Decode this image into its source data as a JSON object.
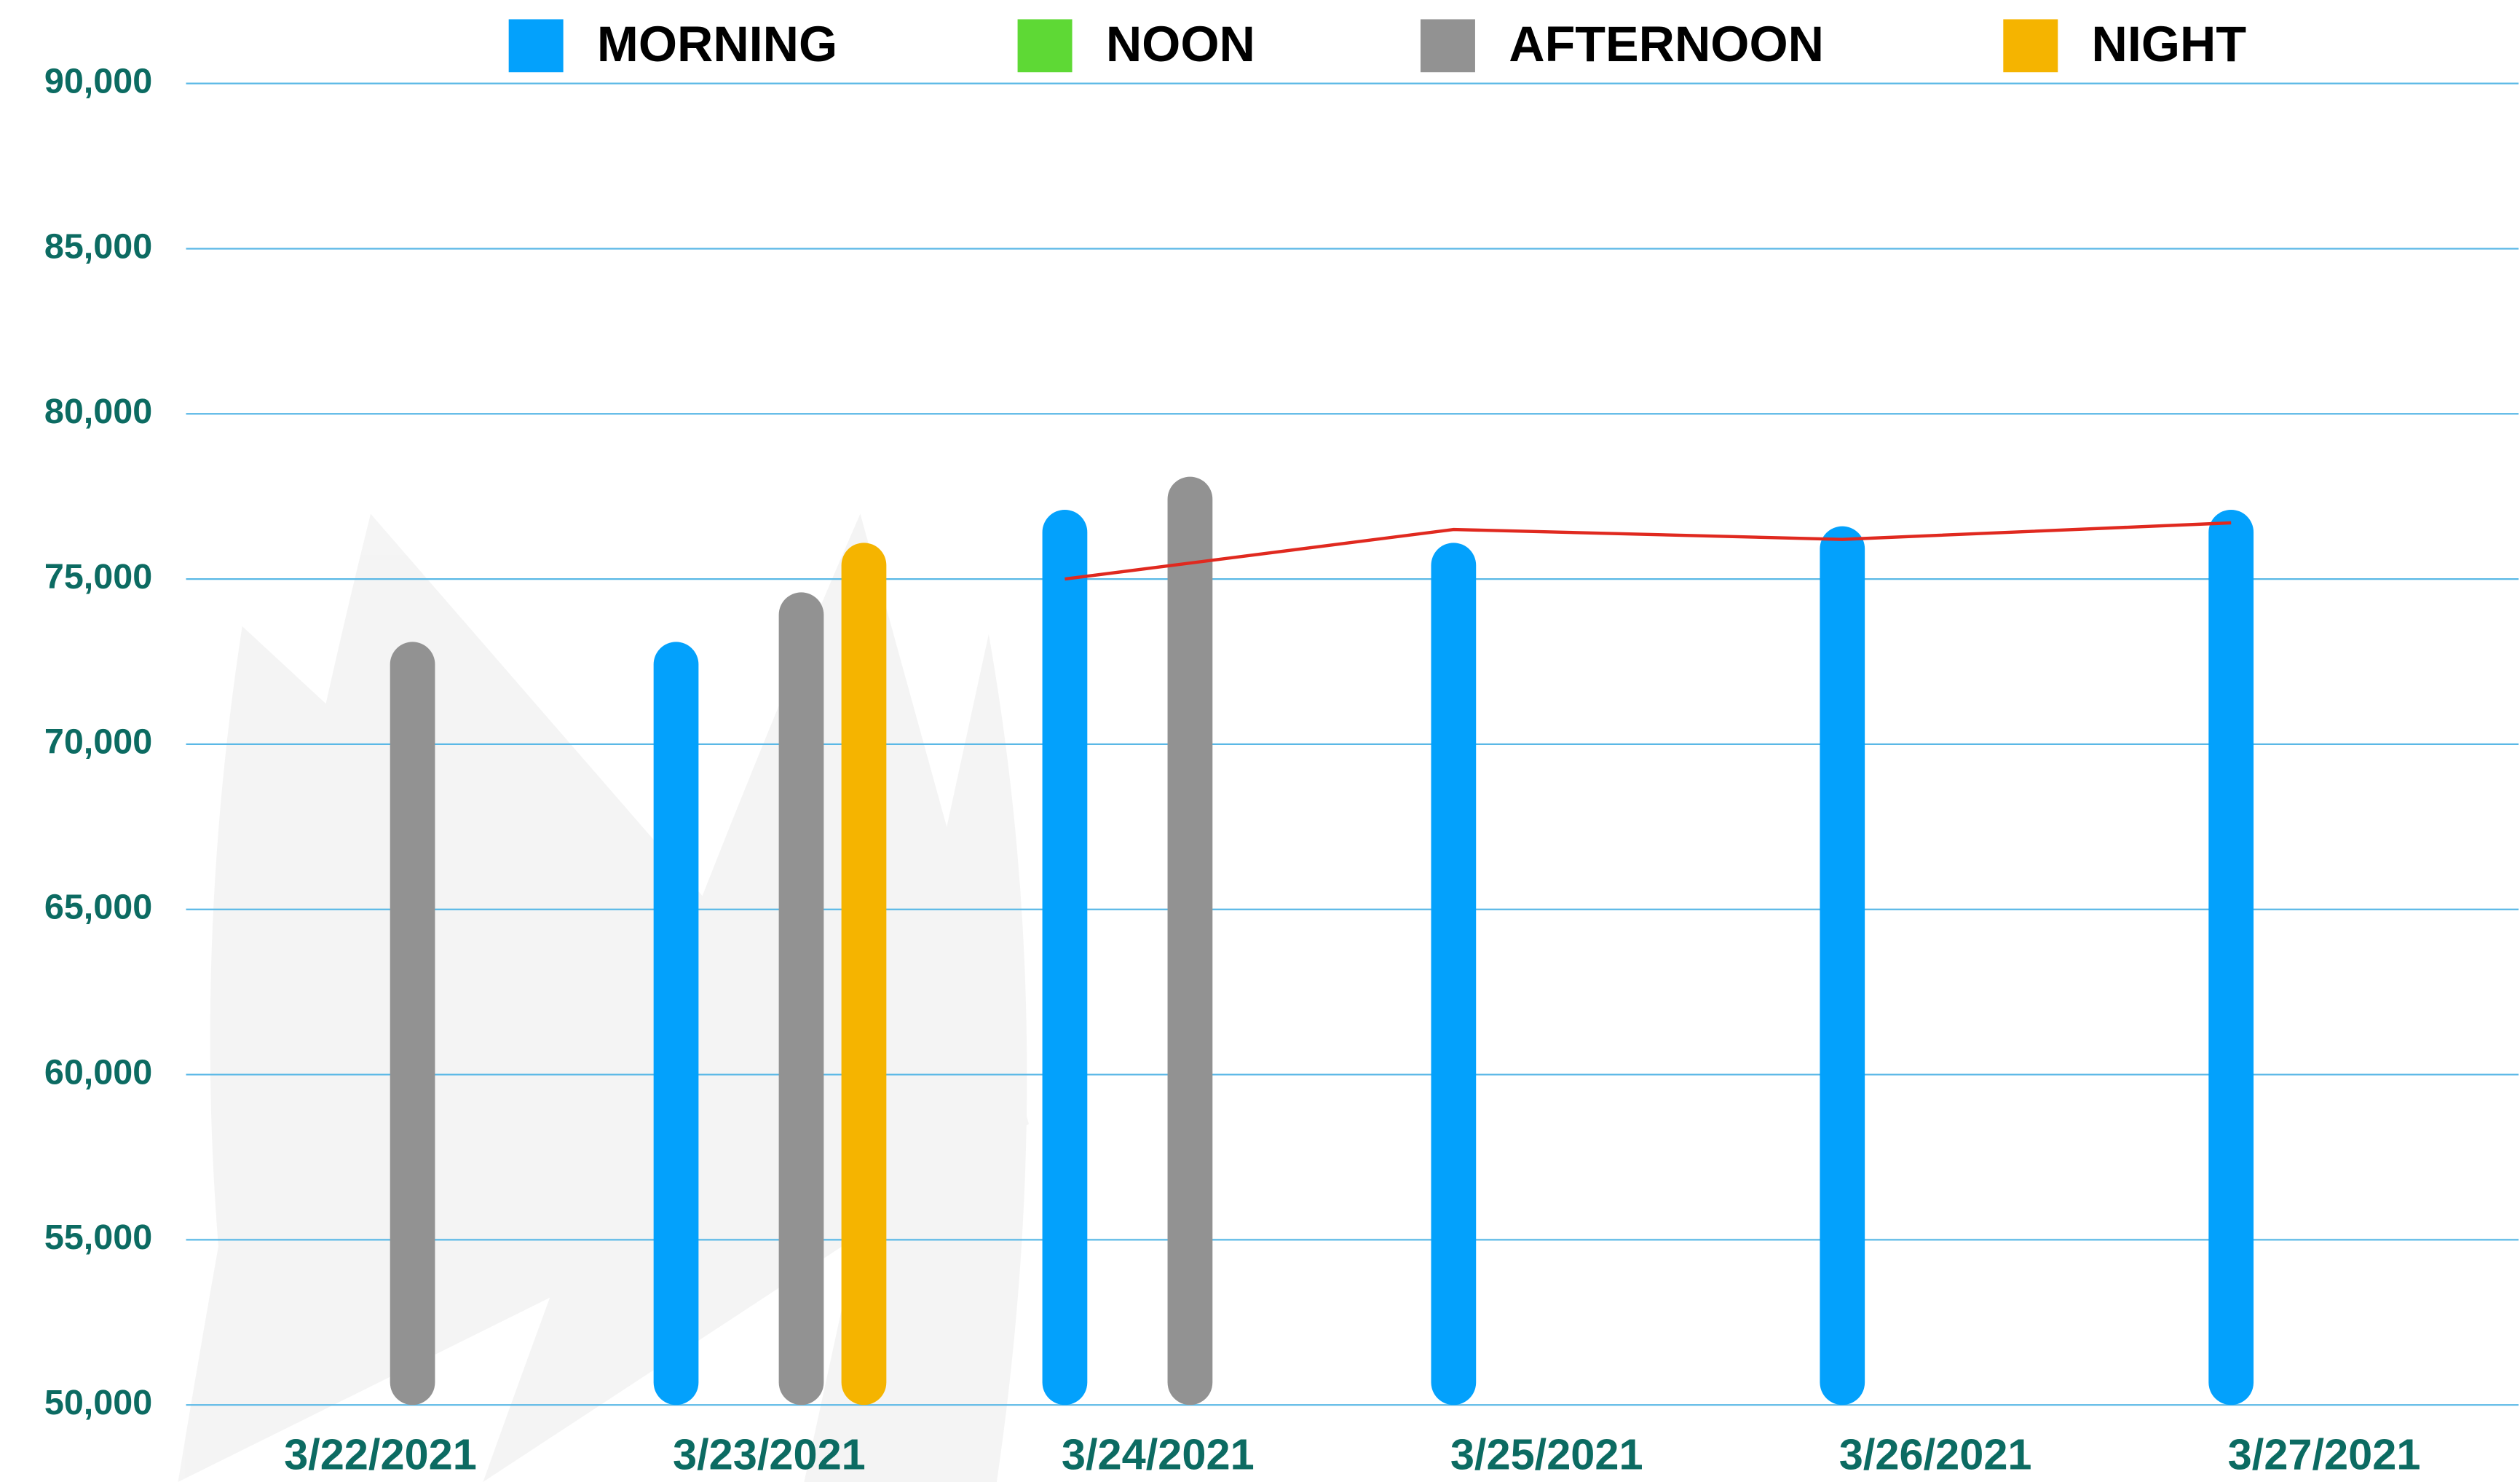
{
  "chart_data": {
    "type": "bar",
    "categories": [
      "3/22/2021",
      "3/23/2021",
      "3/24/2021",
      "3/25/2021",
      "3/26/2021",
      "3/27/2021"
    ],
    "series": [
      {
        "name": "MORNING",
        "color": "#03a1fc",
        "values": [
          null,
          73000,
          77000,
          76000,
          76500,
          77000
        ]
      },
      {
        "name": "NOON",
        "color": "#5ed935",
        "values": [
          null,
          null,
          null,
          null,
          null,
          null
        ]
      },
      {
        "name": "AFTERNOON",
        "color": "#929292",
        "values": [
          73000,
          74500,
          78000,
          null,
          null,
          null
        ]
      },
      {
        "name": "NIGHT",
        "color": "#f5b400",
        "values": [
          null,
          76000,
          null,
          null,
          null,
          null
        ]
      }
    ],
    "trend": {
      "color": "#e0291f",
      "values": [
        null,
        null,
        75000,
        76500,
        76200,
        76700
      ]
    },
    "ylim": [
      50000,
      90000
    ],
    "yticks": [
      {
        "value": 50000,
        "label": "50,000"
      },
      {
        "value": 55000,
        "label": "55,000"
      },
      {
        "value": 60000,
        "label": "60,000"
      },
      {
        "value": 65000,
        "label": "65,000"
      },
      {
        "value": 70000,
        "label": "70,000"
      },
      {
        "value": 75000,
        "label": "75,000"
      },
      {
        "value": 80000,
        "label": "80,000"
      },
      {
        "value": 85000,
        "label": "85,000"
      },
      {
        "value": 90000,
        "label": "90,000"
      }
    ],
    "grid": true
  }
}
